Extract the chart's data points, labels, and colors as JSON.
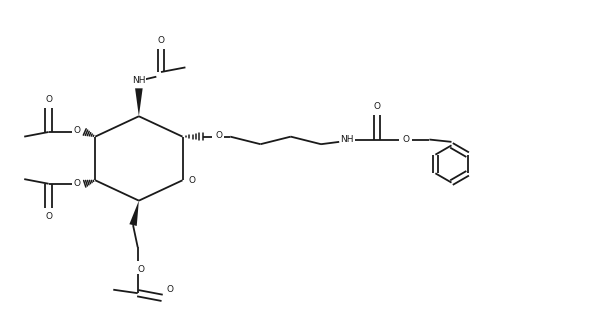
{
  "background_color": "#ffffff",
  "line_color": "#1a1a1a",
  "line_width": 1.3,
  "figsize": [
    5.92,
    3.14
  ],
  "dpi": 100,
  "xlim": [
    0,
    10
  ],
  "ylim": [
    0,
    5.3
  ]
}
